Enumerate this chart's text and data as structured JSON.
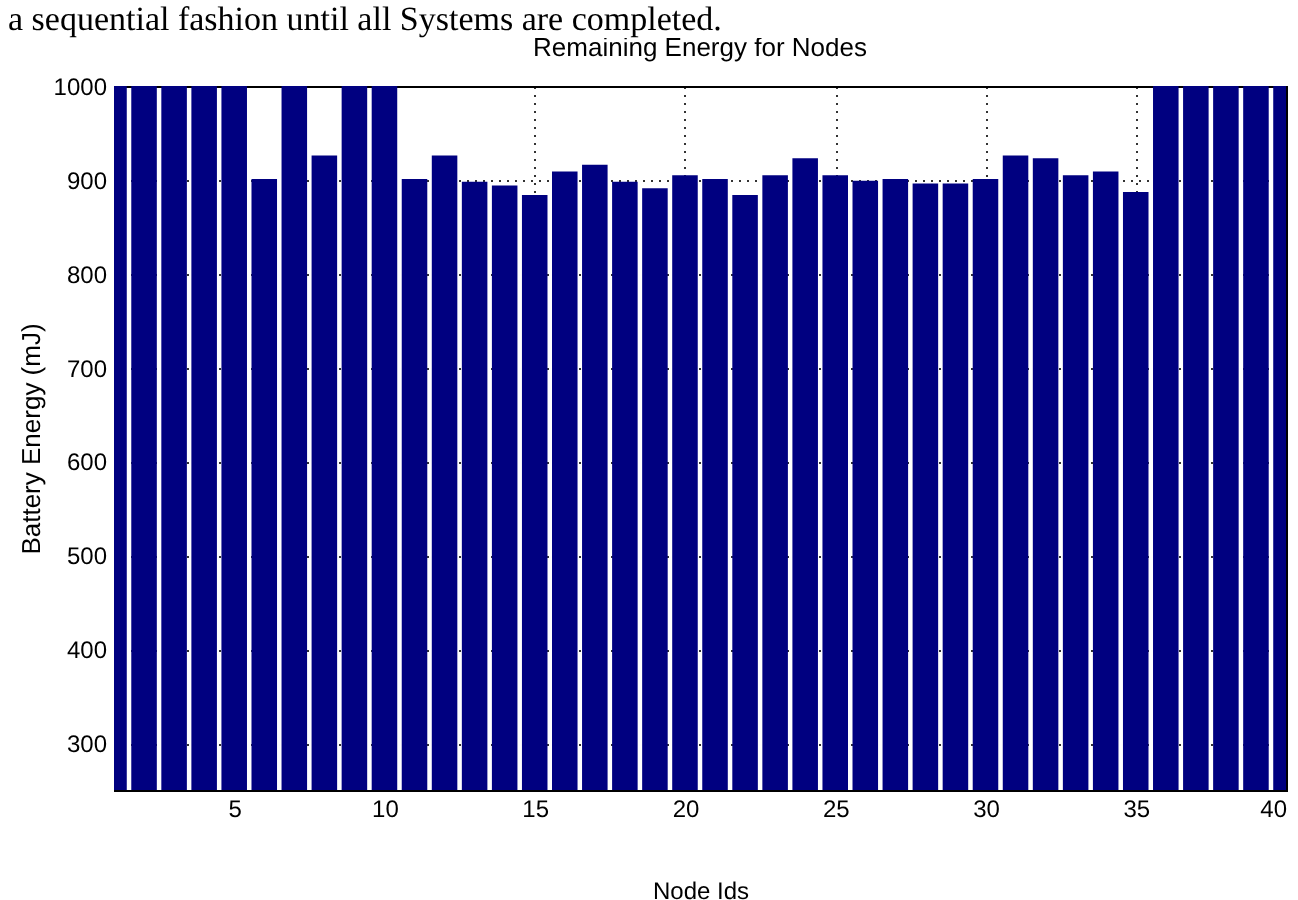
{
  "chart_data": {
    "type": "bar",
    "title": "Remaining Energy for Nodes",
    "xlabel": "Node Ids",
    "ylabel": "Battery Energy (mJ)",
    "annotations": [
      "a sequential fashion until all Systems are completed."
    ],
    "x": [
      1,
      2,
      3,
      4,
      5,
      6,
      7,
      8,
      9,
      10,
      11,
      12,
      13,
      14,
      15,
      16,
      17,
      18,
      19,
      20,
      21,
      22,
      23,
      24,
      25,
      26,
      27,
      28,
      29,
      30,
      31,
      32,
      33,
      34,
      35,
      36,
      37,
      38,
      39,
      40
    ],
    "values": [
      1000,
      1000,
      1000,
      1000,
      1000,
      901,
      1000,
      926,
      1000,
      1000,
      901,
      926,
      898,
      894,
      884,
      909,
      916,
      898,
      891,
      905,
      901,
      884,
      905,
      923,
      905,
      899,
      901,
      896,
      896,
      901,
      926,
      923,
      905,
      909,
      887,
      1000,
      1000,
      1000,
      1000,
      1000
    ],
    "color": "#000080",
    "xlim": [
      1,
      40
    ],
    "xticks": [
      5,
      10,
      15,
      20,
      25,
      30,
      35,
      40
    ],
    "ylim": [
      250,
      1000
    ],
    "yticks": [
      300,
      400,
      500,
      600,
      700,
      800,
      900,
      1000
    ],
    "grid": true
  }
}
